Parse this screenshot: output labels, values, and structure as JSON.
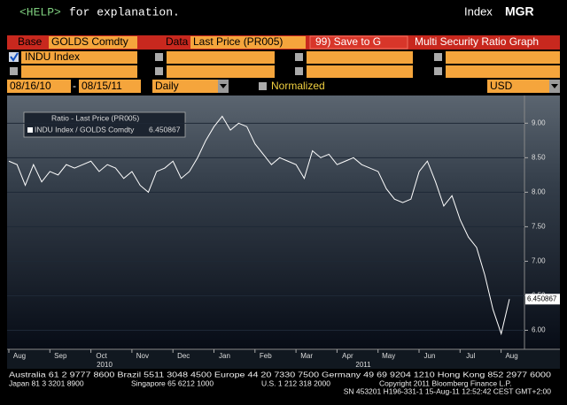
{
  "header": {
    "help_key": "<HELP>",
    "help_text": "for explanation.",
    "function": "Index",
    "function_code": "MGR"
  },
  "form": {
    "base_label": "Base",
    "base_value": "GOLDS Comdty",
    "data_label": "Data",
    "data_value": "Last Price (PR005)",
    "save_button": "99) Save to G",
    "screen_title": "Multi Security Ratio Graph",
    "securities": [
      "INDU Index"
    ],
    "start_date": "08/16/10",
    "date_separator": "-",
    "end_date": "08/15/11",
    "period": "Daily",
    "normalized_label": "Normalized",
    "currency": "USD"
  },
  "chart_data": {
    "type": "line",
    "legend_title": "Ratio - Last Price (PR005)",
    "series": [
      {
        "name": "INDU Index / GOLDS Comdty",
        "color": "#ffffff",
        "values": [
          8.45,
          8.4,
          8.1,
          8.4,
          8.15,
          8.3,
          8.25,
          8.4,
          8.35,
          8.4,
          8.45,
          8.3,
          8.4,
          8.35,
          8.2,
          8.3,
          8.1,
          8.0,
          8.3,
          8.35,
          8.45,
          8.2,
          8.3,
          8.5,
          8.75,
          8.95,
          9.1,
          8.9,
          9.0,
          8.95,
          8.7,
          8.55,
          8.4,
          8.5,
          8.45,
          8.4,
          8.2,
          8.6,
          8.5,
          8.55,
          8.4,
          8.45,
          8.5,
          8.4,
          8.35,
          8.3,
          8.05,
          7.9,
          7.85,
          7.9,
          8.3,
          8.45,
          8.15,
          7.8,
          7.95,
          7.6,
          7.35,
          7.2,
          6.8,
          6.3,
          5.95,
          6.450867
        ]
      }
    ],
    "ylim": [
      5.75,
      9.35
    ],
    "yticks": [
      {
        "value": 6,
        "label": "6.00"
      },
      {
        "value": 6.5,
        "label": "6.50"
      },
      {
        "value": 7,
        "label": "7.00"
      },
      {
        "value": 7.5,
        "label": "7.50"
      },
      {
        "value": 8,
        "label": "8.00"
      },
      {
        "value": 8.5,
        "label": "8.50"
      },
      {
        "value": 9,
        "label": "9.00"
      }
    ],
    "month_labels": [
      "Aug",
      "Sep",
      "Oct",
      "Nov",
      "Dec",
      "Jan",
      "Feb",
      "Mar",
      "Apr",
      "May",
      "Jun",
      "Jul",
      "Aug"
    ],
    "year_labels": [
      "2010",
      "2011"
    ]
  },
  "footer": {
    "lines": [
      [
        "Australia 61 2 9777 8600 Brazil 5511 3048 4500 Europe 44 20 7330 7500 Germany 49 69 9204 1210 Hong Kong 852 2977 6000"
      ],
      [
        "Japan 81 3 3201 8900",
        "Singapore 65 6212 1000",
        "U.S. 1 212 318 2000",
        "Copyright 2011 Bloomberg Finance L.P."
      ],
      [
        "SN 453201 H196-331-1 15-Aug-11 12:52:42 CEST  GMT+2:00"
      ]
    ]
  }
}
